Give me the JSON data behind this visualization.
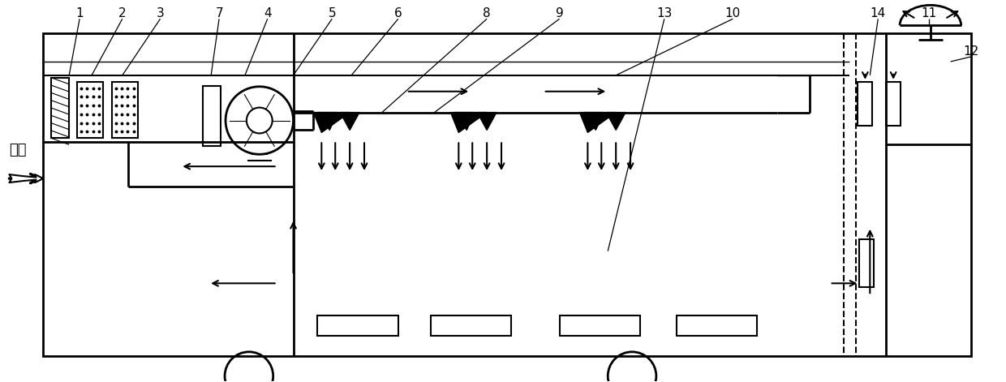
{
  "fig_width": 12.4,
  "fig_height": 4.71,
  "dpi": 100,
  "bg_color": "#ffffff",
  "line_color": "#000000",
  "font_size": 11
}
